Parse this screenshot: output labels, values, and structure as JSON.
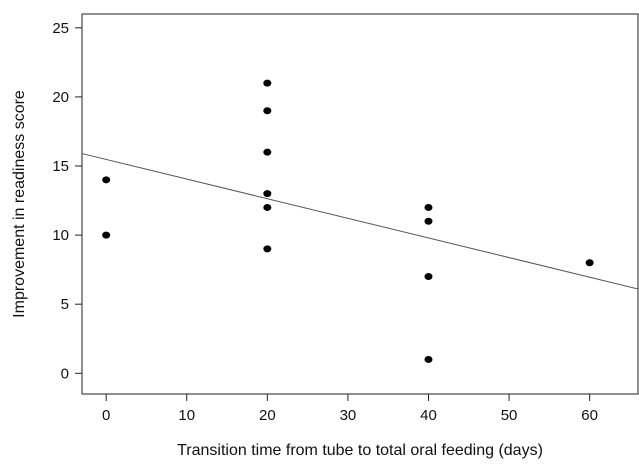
{
  "chart_data": {
    "type": "scatter",
    "xlabel": "Transition time from tube to total oral feeding (days)",
    "ylabel": "Improvement in readiness score",
    "xlim": [
      -3,
      66
    ],
    "ylim": [
      -1.5,
      26
    ],
    "xticks": [
      0,
      10,
      20,
      30,
      40,
      50,
      60
    ],
    "yticks": [
      0,
      5,
      10,
      15,
      20,
      25
    ],
    "grid": false,
    "legend": "none",
    "points": [
      {
        "x": 0,
        "y": 14
      },
      {
        "x": 0,
        "y": 10
      },
      {
        "x": 20,
        "y": 21
      },
      {
        "x": 20,
        "y": 19
      },
      {
        "x": 20,
        "y": 16
      },
      {
        "x": 20,
        "y": 13
      },
      {
        "x": 20,
        "y": 12
      },
      {
        "x": 20,
        "y": 9
      },
      {
        "x": 40,
        "y": 12
      },
      {
        "x": 40,
        "y": 11
      },
      {
        "x": 40,
        "y": 7
      },
      {
        "x": 40,
        "y": 1
      },
      {
        "x": 60,
        "y": 8
      }
    ],
    "fit_line": {
      "x": [
        -3,
        66
      ],
      "y": [
        15.9,
        6.1
      ]
    },
    "colors": {
      "points": "#000000",
      "fit_line": "#555555",
      "axes": "#222222"
    }
  }
}
